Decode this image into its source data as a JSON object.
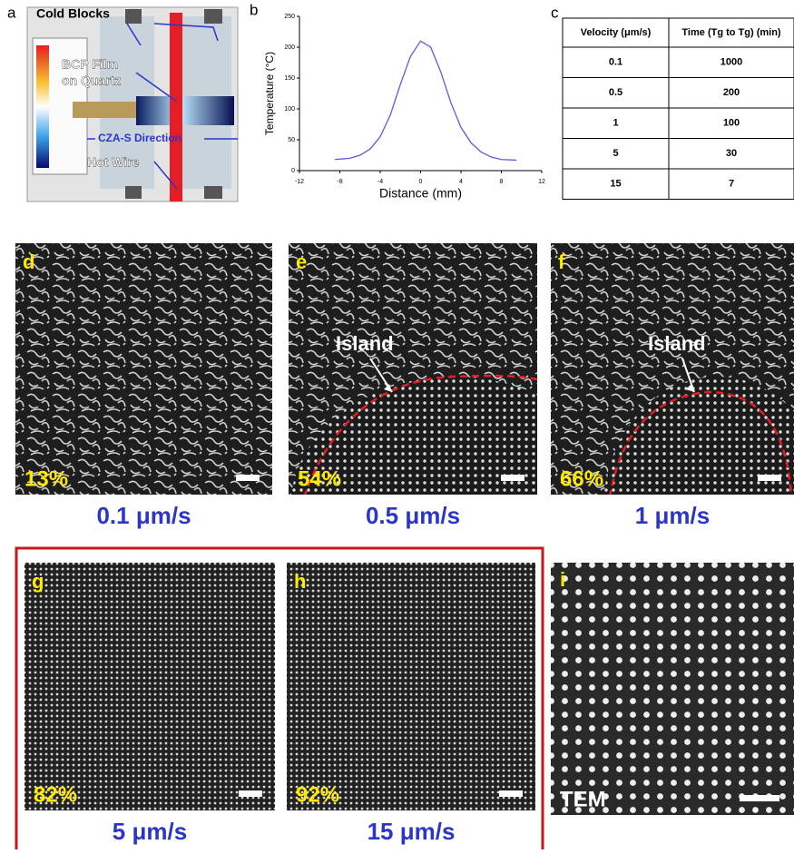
{
  "panel_a": {
    "letter": "a",
    "labels": [
      "Cold Blocks",
      "BCP Film",
      "on Quartz",
      "CZA-S Direction",
      "Hot Wire"
    ]
  },
  "chart_data": {
    "type": "line",
    "letter": "b",
    "x_label": "Distance (mm)",
    "y_label": "Temperature (°C)",
    "x": [
      -8.5,
      -7,
      -6,
      -5,
      -4,
      -3,
      -2,
      -1,
      0,
      1,
      2,
      3,
      4,
      5,
      6,
      7,
      8,
      9.5
    ],
    "series": [
      {
        "color": "#5b5bdc",
        "values": [
          18,
          20,
          25,
          35,
          55,
          90,
          140,
          185,
          210,
          200,
          160,
          110,
          70,
          45,
          30,
          22,
          18,
          17
        ]
      }
    ],
    "xlim": [
      -12,
      12
    ],
    "xticks": [
      -12,
      -8,
      -4,
      0,
      4,
      8,
      12
    ],
    "ylim": [
      0,
      250
    ],
    "yticks": [
      0,
      50,
      100,
      150,
      200,
      250
    ]
  },
  "table": {
    "letter": "c",
    "header": [
      "Velocity (μm/s)",
      "Time (Tg to Tg) (min)"
    ],
    "rows": [
      [
        "0.1",
        "1000"
      ],
      [
        "0.5",
        "200"
      ],
      [
        "1",
        "100"
      ],
      [
        "5",
        "30"
      ],
      [
        "15",
        "7"
      ]
    ]
  },
  "panels": [
    {
      "letter": "d",
      "fraction": "13%",
      "speed": "0.1 μm/s"
    },
    {
      "letter": "e",
      "fraction": "54%",
      "speed": "0.5 μm/s",
      "annotation": "Island"
    },
    {
      "letter": "f",
      "fraction": "66%",
      "speed": "1 μm/s",
      "annotation": "Island"
    },
    {
      "letter": "g",
      "fraction": "82%",
      "speed": "5 μm/s"
    },
    {
      "letter": "h",
      "fraction": "92%",
      "speed": "15 μm/s"
    },
    {
      "letter": "i",
      "fraction": "TEM"
    }
  ]
}
